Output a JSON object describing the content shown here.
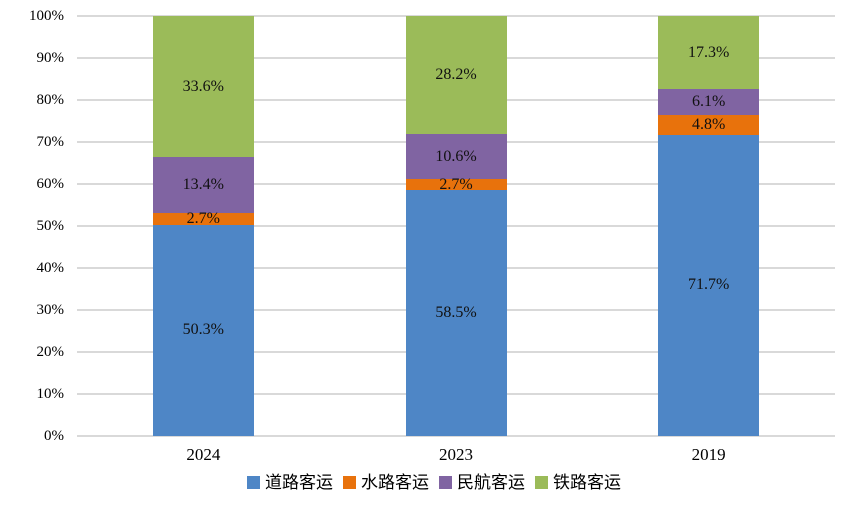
{
  "chart_data": {
    "type": "bar",
    "variant": "stacked-100-percent-column",
    "title": "",
    "xlabel": "",
    "ylabel": "",
    "categories": [
      "2024",
      "2023",
      "2019"
    ],
    "series": [
      {
        "name": "道路客运",
        "color": "#4E86C6",
        "values": [
          50.3,
          58.5,
          71.7
        ],
        "labels": [
          "50.3%",
          "58.5%",
          "71.7%"
        ]
      },
      {
        "name": "水路客运",
        "color": "#E8720C",
        "values": [
          2.7,
          2.7,
          4.8
        ],
        "labels": [
          "2.7%",
          "2.7%",
          "4.8%"
        ]
      },
      {
        "name": "民航客运",
        "color": "#8064A2",
        "values": [
          13.4,
          10.6,
          6.1
        ],
        "labels": [
          "13.4%",
          "10.6%",
          "6.1%"
        ]
      },
      {
        "name": "铁路客运",
        "color": "#9BBB59",
        "values": [
          33.6,
          28.2,
          17.3
        ],
        "labels": [
          "33.6%",
          "28.2%",
          "17.3%"
        ]
      }
    ],
    "y_axis": {
      "min": 0,
      "max": 100,
      "tick_step": 10,
      "ticks": [
        "0%",
        "10%",
        "20%",
        "30%",
        "40%",
        "50%",
        "60%",
        "70%",
        "80%",
        "90%",
        "100%"
      ],
      "grid": true
    },
    "legend_position": "bottom",
    "colors": {
      "background": "#FFFFFF",
      "gridline": "#D9D9D9",
      "data_label_text": "#111111",
      "axis_text": "#000000"
    }
  }
}
